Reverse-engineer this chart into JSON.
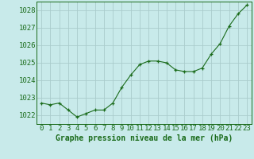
{
  "x": [
    0,
    1,
    2,
    3,
    4,
    5,
    6,
    7,
    8,
    9,
    10,
    11,
    12,
    13,
    14,
    15,
    16,
    17,
    18,
    19,
    20,
    21,
    22,
    23
  ],
  "y": [
    1022.7,
    1022.6,
    1022.7,
    1022.3,
    1021.9,
    1022.1,
    1022.3,
    1022.3,
    1022.7,
    1023.6,
    1024.3,
    1024.9,
    1025.1,
    1025.1,
    1025.0,
    1024.6,
    1024.5,
    1024.5,
    1024.7,
    1025.5,
    1026.1,
    1027.1,
    1027.8,
    1028.3
  ],
  "line_color": "#1a6b1a",
  "marker_color": "#1a6b1a",
  "bg_color": "#c8eaea",
  "grid_color": "#aacccc",
  "xlabel": "Graphe pression niveau de la mer (hPa)",
  "ylim": [
    1021.5,
    1028.5
  ],
  "xlim": [
    -0.5,
    23.5
  ],
  "yticks": [
    1022,
    1023,
    1024,
    1025,
    1026,
    1027,
    1028
  ],
  "xticks": [
    0,
    1,
    2,
    3,
    4,
    5,
    6,
    7,
    8,
    9,
    10,
    11,
    12,
    13,
    14,
    15,
    16,
    17,
    18,
    19,
    20,
    21,
    22,
    23
  ],
  "xlabel_fontsize": 7,
  "tick_fontsize": 6.5
}
